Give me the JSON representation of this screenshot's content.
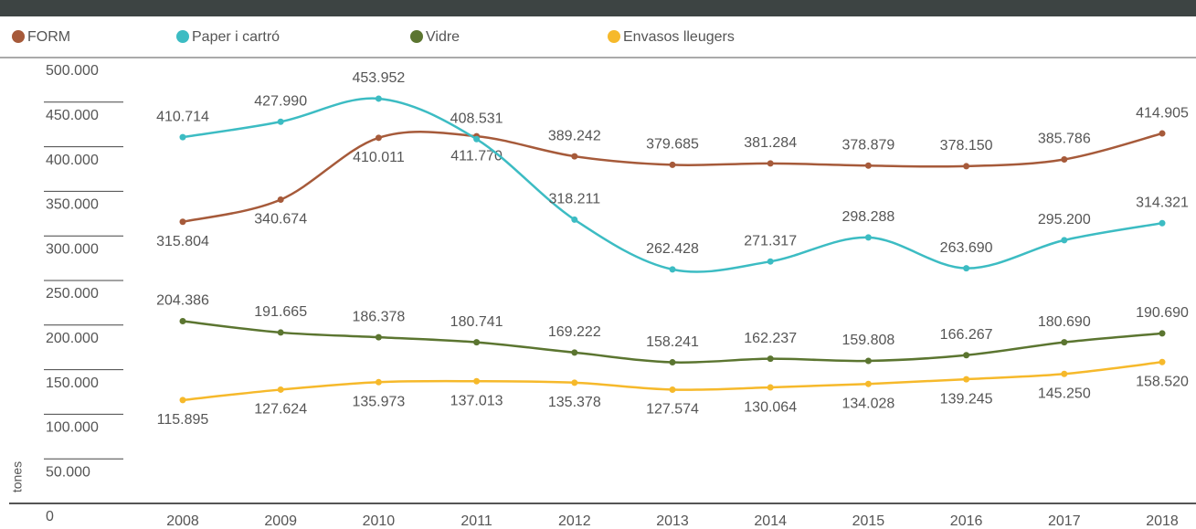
{
  "chart_data": {
    "type": "line",
    "y_label": "tones",
    "categories": [
      "2008",
      "2009",
      "2010",
      "2011",
      "2012",
      "2013",
      "2014",
      "2015",
      "2016",
      "2017",
      "2018"
    ],
    "ylim": [
      0,
      500000
    ],
    "yticks": [
      0,
      {
        "value": 50000,
        "label": "50.000"
      },
      {
        "value": 100000,
        "label": "100.000"
      },
      {
        "value": 150000,
        "label": "150.000"
      },
      {
        "value": 200000,
        "label": "200.000"
      },
      {
        "value": 250000,
        "label": "250.000"
      },
      {
        "value": 300000,
        "label": "300.000"
      },
      {
        "value": 350000,
        "label": "350.000"
      },
      {
        "value": 400000,
        "label": "400.000"
      },
      {
        "value": 450000,
        "label": "450.000"
      },
      {
        "value": 500000,
        "label": "500.000"
      }
    ],
    "series": [
      {
        "name": "FORM",
        "color": "#a65a3a",
        "values": [
          315804,
          340674,
          410011,
          411770,
          389242,
          379685,
          381284,
          378879,
          378150,
          385786,
          414905
        ],
        "value_labels": [
          "315.804",
          "340.674",
          "410.011",
          "411.770",
          "389.242",
          "379.685",
          "381.284",
          "378.879",
          "378.150",
          "385.786",
          "414.905"
        ]
      },
      {
        "name": "Paper i cartró",
        "color": "#3cbcc3",
        "values": [
          410714,
          427990,
          453952,
          408531,
          318211,
          262428,
          271317,
          298288,
          263690,
          295200,
          314321
        ],
        "value_labels": [
          "410.714",
          "427.990",
          "453.952",
          "408.531",
          "318.211",
          "262.428",
          "271.317",
          "298.288",
          "263.690",
          "295.200",
          "314.321"
        ]
      },
      {
        "name": "Vidre",
        "color": "#5b7530",
        "values": [
          204386,
          191665,
          186378,
          180741,
          169222,
          158241,
          162237,
          159808,
          166267,
          180690,
          190690
        ],
        "value_labels": [
          "204.386",
          "191.665",
          "186.378",
          "180.741",
          "169.222",
          "158.241",
          "162.237",
          "159.808",
          "166.267",
          "180.690",
          "190.690"
        ]
      },
      {
        "name": "Envasos lleugers",
        "color": "#f6b92b",
        "values": [
          115895,
          127624,
          135973,
          137013,
          135378,
          127574,
          130064,
          134028,
          139245,
          145250,
          158520
        ],
        "value_labels": [
          "115.895",
          "127.624",
          "135.973",
          "137.013",
          "135.378",
          "127.574",
          "130.064",
          "134.028",
          "139.245",
          "145.250",
          "158.520"
        ]
      }
    ]
  }
}
